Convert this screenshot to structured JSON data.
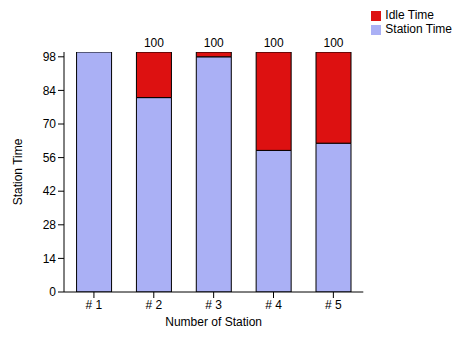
{
  "chart_data": {
    "type": "bar",
    "stacked": true,
    "x_label": "Number of Station",
    "y_label": "Station Time",
    "categories": [
      "# 1",
      "# 2",
      "# 3",
      "# 4",
      "# 5"
    ],
    "series": [
      {
        "name": "Station Time",
        "color": "#aab0f5",
        "values": [
          100,
          81,
          98,
          59,
          62
        ]
      },
      {
        "name": "Idle Time",
        "color": "#dd1111",
        "values": [
          0,
          19,
          2,
          41,
          38
        ]
      }
    ],
    "totals": [
      100,
      100,
      100,
      100,
      100
    ],
    "ylim": [
      0,
      100
    ],
    "yticks": [
      0,
      14,
      28,
      42,
      56,
      70,
      84,
      98
    ],
    "grid": false,
    "legend": "upper right"
  }
}
